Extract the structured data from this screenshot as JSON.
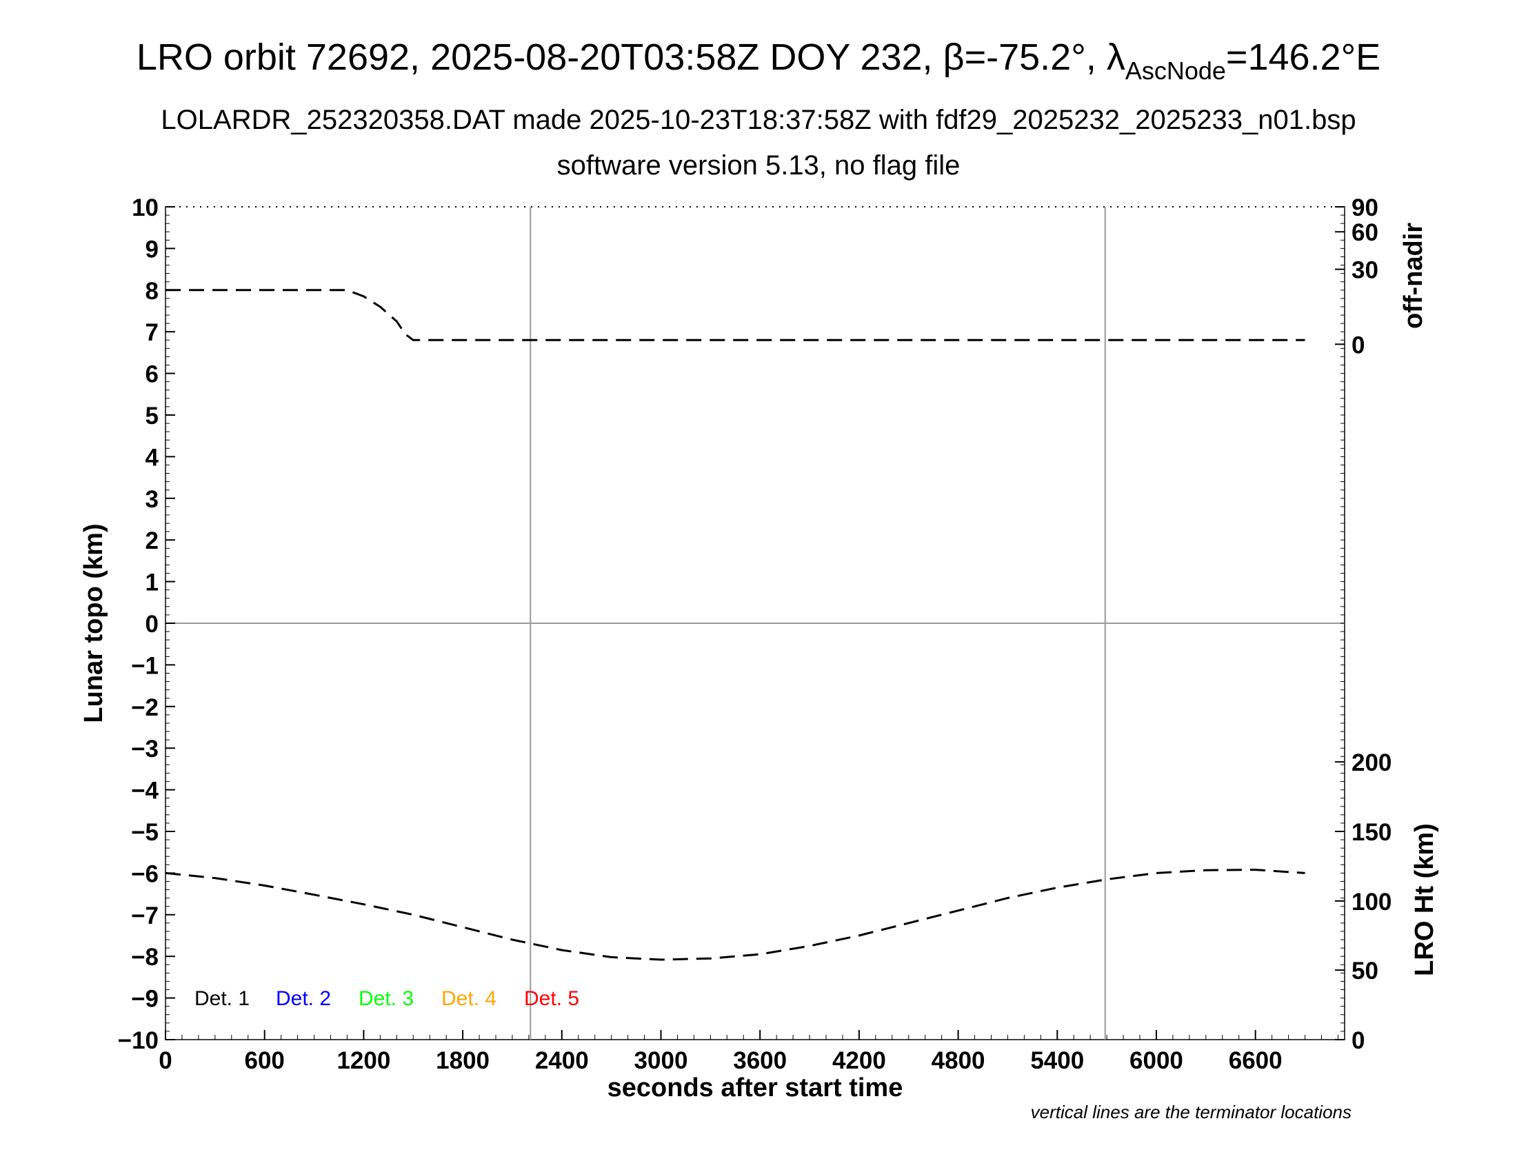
{
  "titles": {
    "line1_main": "LRO orbit 72692, 2025-08-20T03:58Z DOY 232, β=-75.2°, λ",
    "line1_sub": "AscNode",
    "line1_end": "=146.2°E",
    "line2": "LOLARDR_252320358.DAT made 2025-10-23T18:37:58Z with fdf29_2025232_2025233_n01.bsp",
    "line3": "software version 5.13, no flag file"
  },
  "note": "vertical lines are the terminator locations",
  "legend": [
    {
      "label": "Det. 1",
      "color": "#000000"
    },
    {
      "label": "Det. 2",
      "color": "#0000ff"
    },
    {
      "label": "Det. 3",
      "color": "#00ff00"
    },
    {
      "label": "Det. 4",
      "color": "#ffa500"
    },
    {
      "label": "Det. 5",
      "color": "#ff0000"
    }
  ],
  "chart_data": {
    "type": "line",
    "xlabel": "seconds after start time",
    "ylabel": "Lunar topo (km)",
    "xlim": [
      0,
      7140
    ],
    "ylim": [
      -10,
      10
    ],
    "xticks": [
      0,
      600,
      1200,
      1800,
      2400,
      3000,
      3600,
      4200,
      4800,
      5400,
      6000,
      6600
    ],
    "xtick_labels": [
      "0",
      "600",
      "1200",
      "1800",
      "2400",
      "3000",
      "3600",
      "4200",
      "4800",
      "5400",
      "6000",
      "6600"
    ],
    "yticks": [
      -10,
      -9,
      -8,
      -7,
      -6,
      -5,
      -4,
      -3,
      -2,
      -1,
      0,
      1,
      2,
      3,
      4,
      5,
      6,
      7,
      8,
      9,
      10
    ],
    "ytick_labels": [
      "−10",
      "−9",
      "−8",
      "−7",
      "−6",
      "−5",
      "−4",
      "−3",
      "−2",
      "−1",
      "0",
      "1",
      "2",
      "3",
      "4",
      "5",
      "6",
      "7",
      "8",
      "9",
      "10"
    ],
    "terminator_lines_x": [
      2210,
      5690
    ],
    "zero_line_y": 0,
    "right_axis_top": {
      "label": "off-nadir",
      "ticks": [
        {
          "value": 0,
          "at_y": 6.7
        },
        {
          "value": 30,
          "at_y": 8.5
        },
        {
          "value": 60,
          "at_y": 9.4
        },
        {
          "value": 90,
          "at_y": 10
        }
      ],
      "tick_labels": [
        "0",
        "30",
        "60",
        "90"
      ]
    },
    "right_axis_bottom": {
      "label": "LRO Ht (km)",
      "ticks": [
        {
          "value": 0,
          "at_y": -10
        },
        {
          "value": 50,
          "at_y": -8.33
        },
        {
          "value": 100,
          "at_y": -6.67
        },
        {
          "value": 150,
          "at_y": -5
        },
        {
          "value": 200,
          "at_y": -3.33
        }
      ],
      "tick_labels": [
        "0",
        "50",
        "100",
        "150",
        "200"
      ]
    },
    "series": [
      {
        "style": "dashed",
        "color": "#000000",
        "axis": "off-nadir",
        "x": [
          0,
          300,
          600,
          900,
          1100,
          1200,
          1300,
          1400,
          1450,
          1500,
          2200,
          3000,
          4000,
          5000,
          6000,
          6900
        ],
        "y": [
          8.0,
          8.0,
          8.0,
          8.0,
          8.0,
          7.85,
          7.6,
          7.25,
          6.95,
          6.8,
          6.8,
          6.8,
          6.8,
          6.8,
          6.8,
          6.8
        ]
      },
      {
        "style": "dashed",
        "color": "#000000",
        "axis": "LRO Ht",
        "x": [
          0,
          300,
          600,
          900,
          1200,
          1500,
          1800,
          2100,
          2400,
          2700,
          3000,
          3300,
          3600,
          3900,
          4200,
          4500,
          4800,
          5100,
          5400,
          5700,
          6000,
          6300,
          6600,
          6900
        ],
        "y": [
          -6.0,
          -6.12,
          -6.3,
          -6.52,
          -6.75,
          -7.0,
          -7.3,
          -7.6,
          -7.85,
          -8.02,
          -8.08,
          -8.05,
          -7.95,
          -7.75,
          -7.5,
          -7.2,
          -6.9,
          -6.6,
          -6.35,
          -6.15,
          -6.0,
          -5.93,
          -5.92,
          -6.0
        ]
      }
    ]
  }
}
